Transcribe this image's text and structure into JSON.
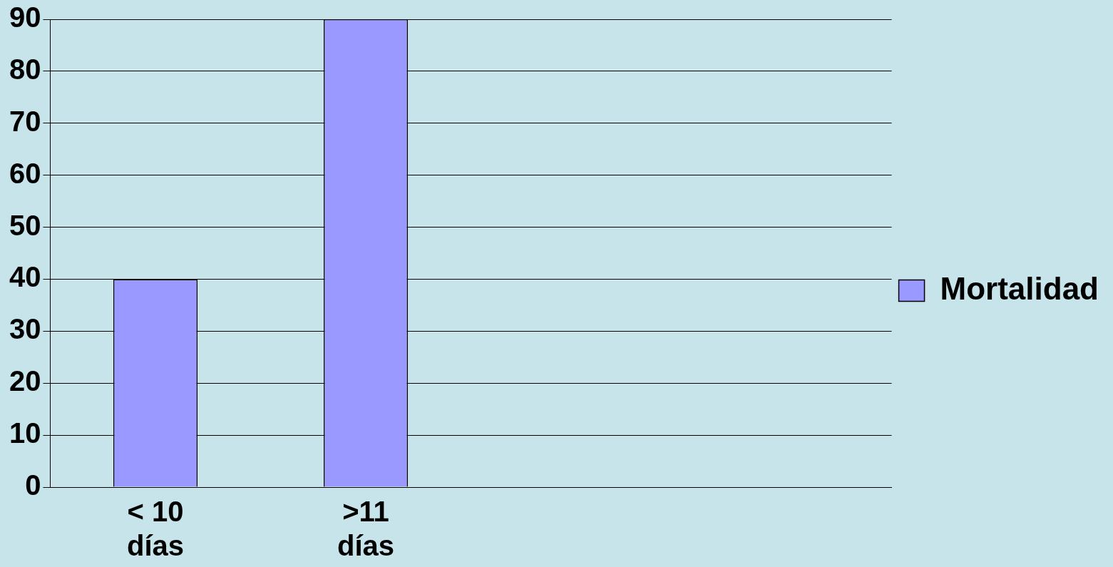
{
  "chart_data": {
    "type": "bar",
    "categories": [
      "< 10 días",
      ">11 días",
      null,
      null
    ],
    "series": [
      {
        "name": "Mortalidad",
        "color": "#9999ff",
        "values": [
          40,
          90,
          null,
          null
        ]
      }
    ],
    "ylim": [
      0,
      90
    ],
    "yticks": [
      0,
      10,
      20,
      30,
      40,
      50,
      60,
      70,
      80,
      90
    ],
    "grid": "y",
    "legend": "right"
  }
}
